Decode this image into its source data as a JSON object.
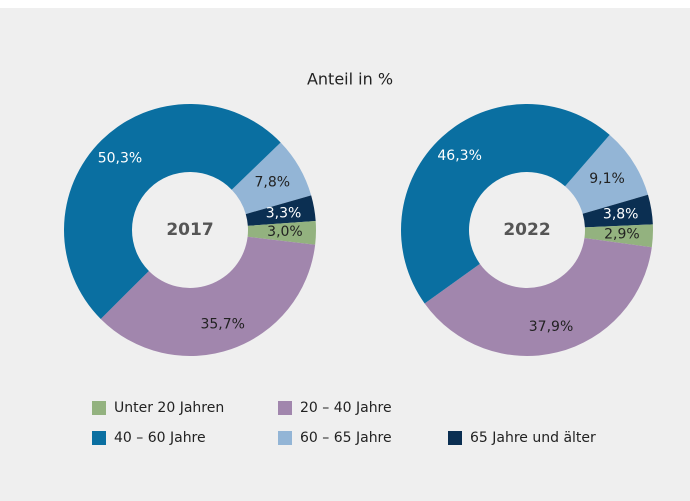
{
  "title": "Anteil in %",
  "categories": [
    "Unter 20 Jahren",
    "20 – 40 Jahre",
    "40 – 60 Jahre",
    "60 – 65 Jahre",
    "65 Jahre und älter"
  ],
  "colors": [
    "#93b27f",
    "#a186ad",
    "#0a6fa1",
    "#93b5d6",
    "#0b2f52"
  ],
  "chart_data": [
    {
      "type": "pie",
      "donut": true,
      "center_label": "2017",
      "values": [
        3.0,
        35.7,
        50.3,
        7.8,
        3.3
      ],
      "value_labels": [
        "3,0%",
        "35,7%",
        "50,3%",
        "7,8%",
        "3,3%"
      ]
    },
    {
      "type": "pie",
      "donut": true,
      "center_label": "2022",
      "values": [
        2.9,
        37.9,
        46.3,
        9.1,
        3.8
      ],
      "value_labels": [
        "2,9%",
        "37,9%",
        "46,3%",
        "9,1%",
        "3,8%"
      ]
    }
  ]
}
